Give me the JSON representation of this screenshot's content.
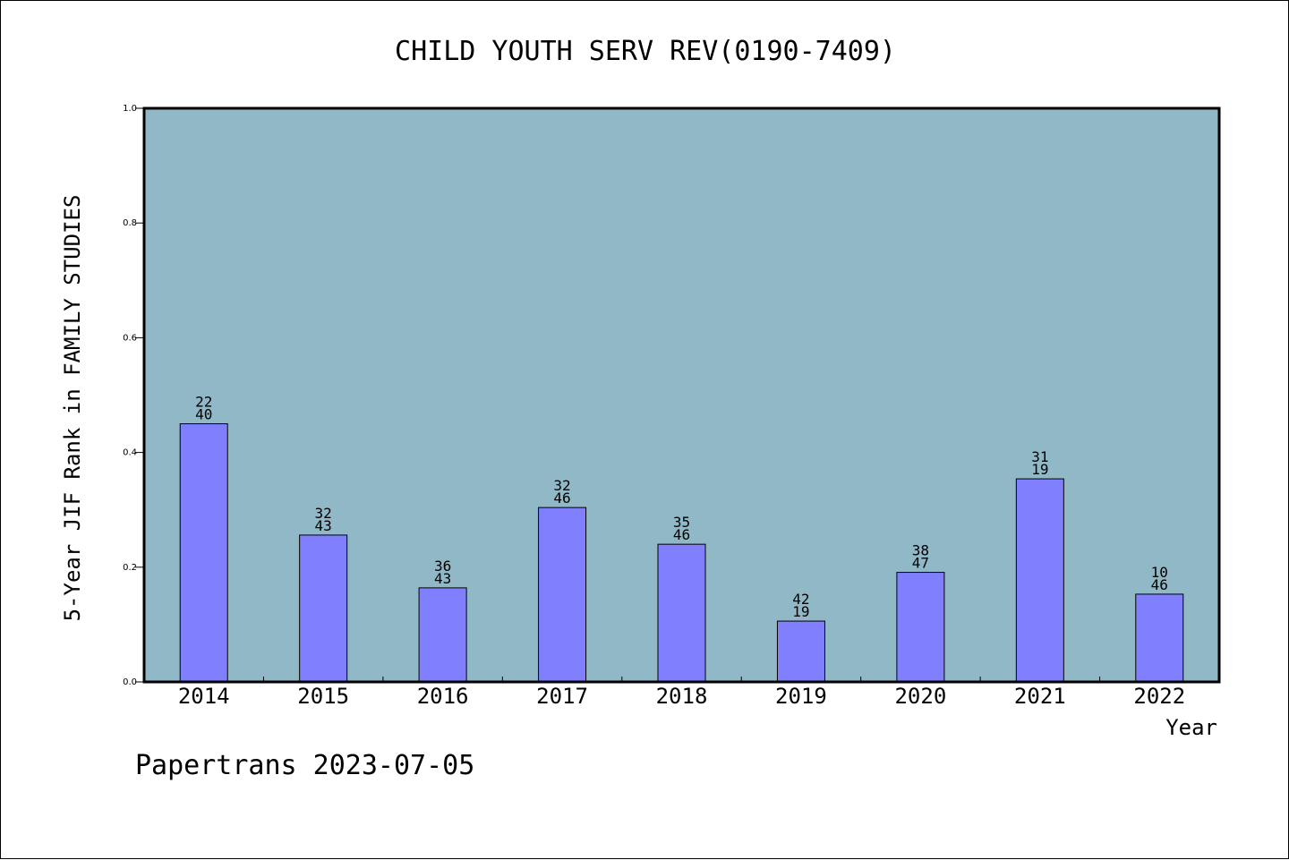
{
  "colors": {
    "plot_background": "#90b8c6",
    "bar_fill": "#8080ff",
    "axis": "#000000"
  },
  "footer": {
    "text": "Papertrans 2023-07-05"
  },
  "chart_data": {
    "type": "bar",
    "title": "CHILD YOUTH SERV REV(0190-7409)",
    "xlabel": "Year",
    "ylabel": "5-Year JIF Rank in FAMILY STUDIES",
    "ylim": [
      0,
      1.0
    ],
    "yticks": [
      "0.0",
      "0.2",
      "0.4",
      "0.6",
      "0.8",
      "1.0"
    ],
    "grid": false,
    "categories": [
      "2014",
      "2015",
      "2016",
      "2017",
      "2018",
      "2019",
      "2020",
      "2021",
      "2022"
    ],
    "values": [
      0.45,
      0.256,
      0.164,
      0.304,
      0.24,
      0.106,
      0.191,
      0.354,
      0.153
    ],
    "labels_top": [
      "22",
      "32",
      "36",
      "32",
      "35",
      "42",
      "38",
      "31",
      "10"
    ],
    "labels_bottom": [
      "40",
      "43",
      "43",
      "46",
      "46",
      "19",
      "47",
      "19",
      "46"
    ]
  }
}
